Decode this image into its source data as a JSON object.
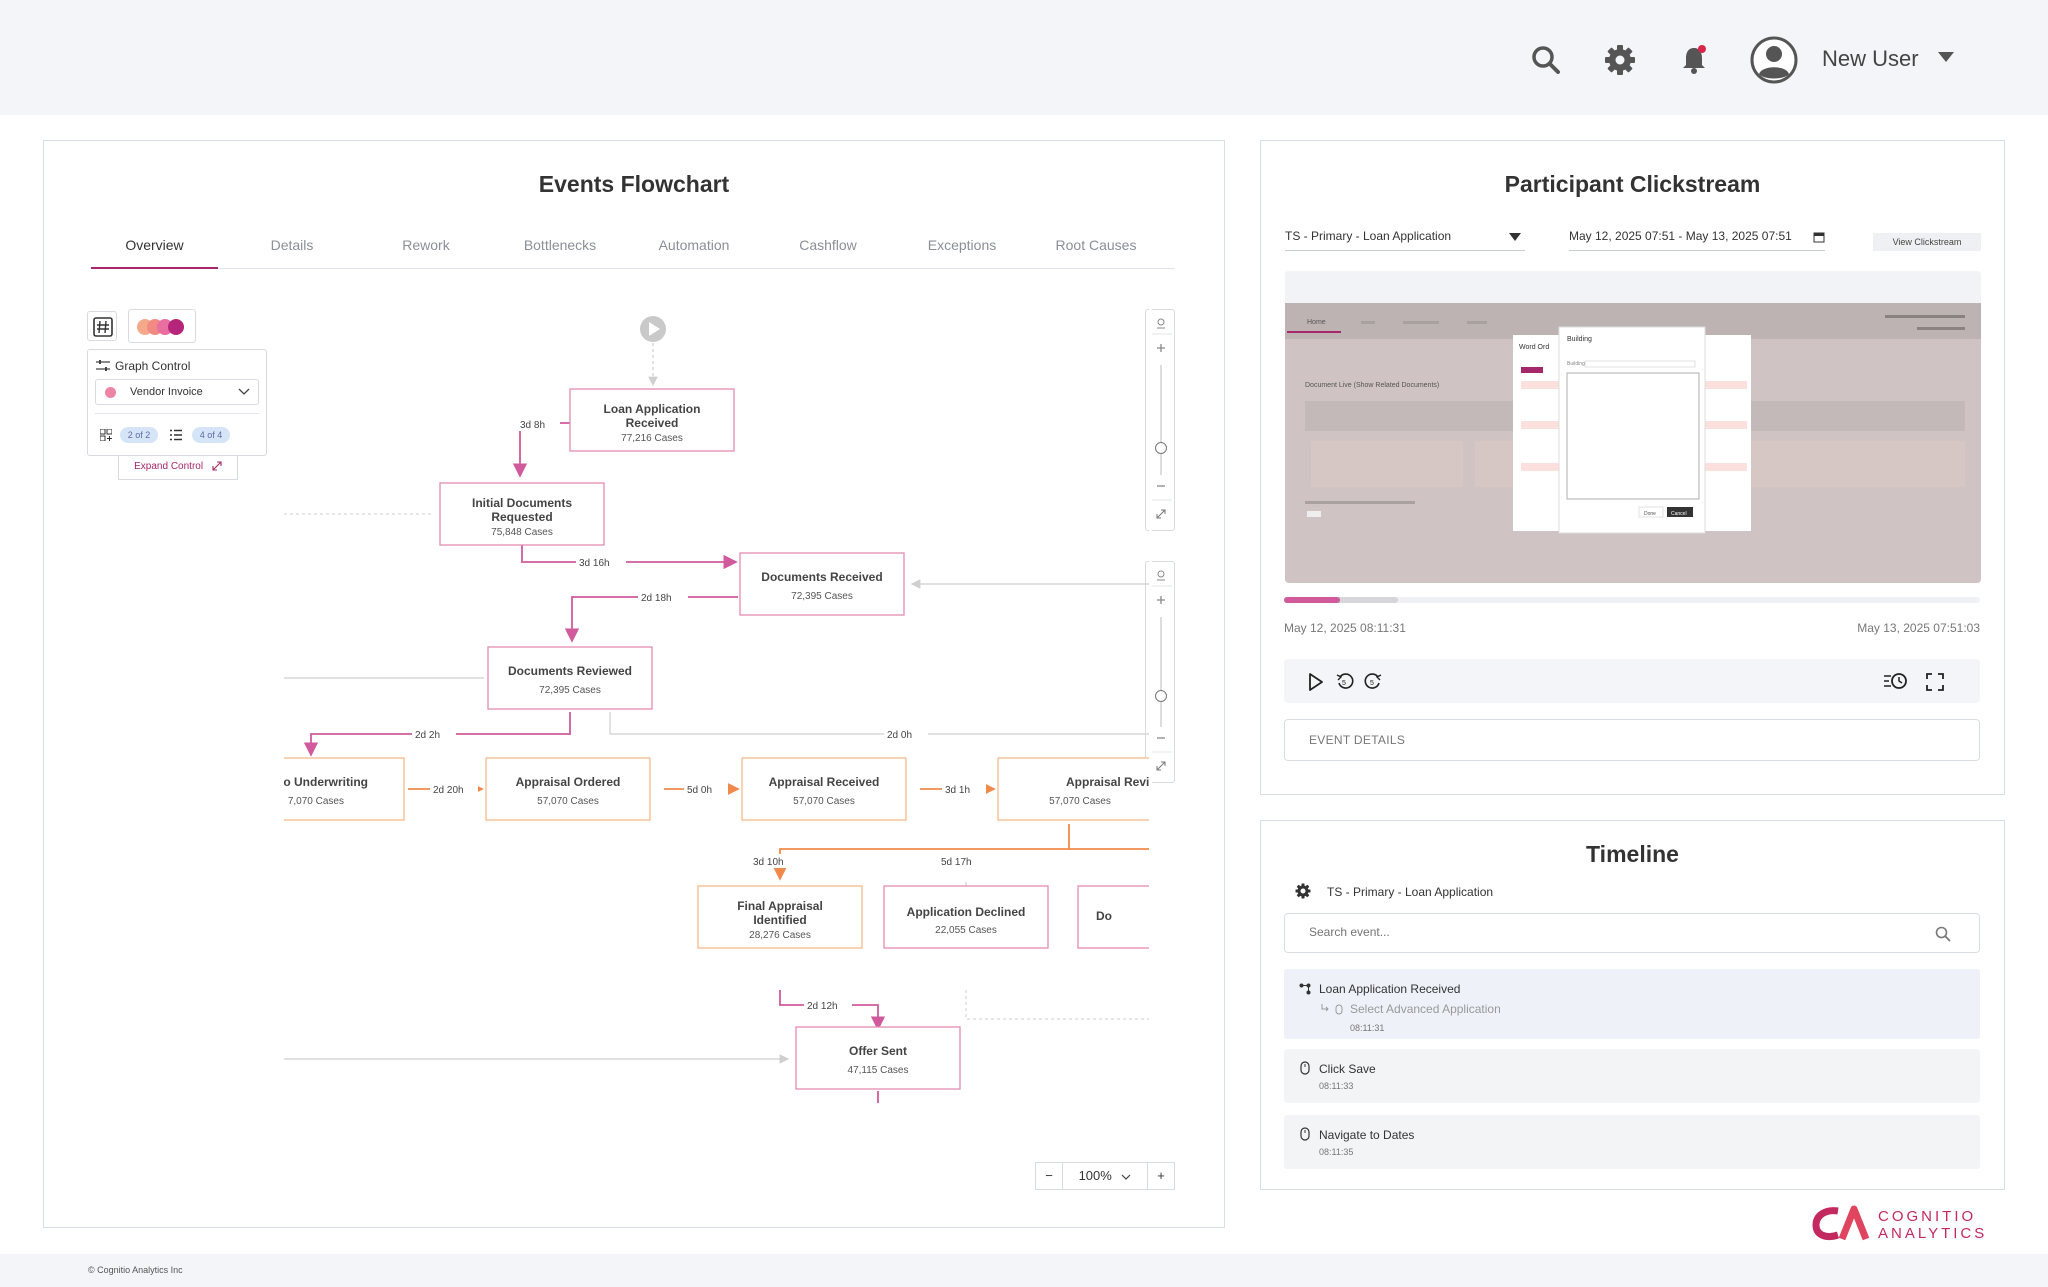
{
  "header": {
    "user_name": "New User",
    "icons": [
      "search-icon",
      "gear-icon",
      "bell-icon",
      "avatar-icon",
      "caret-down-icon"
    ],
    "notification_dot_color": "#d9254a"
  },
  "flowchart": {
    "title": "Events Flowchart",
    "tabs": [
      "Overview",
      "Details",
      "Rework",
      "Bottlenecks",
      "Automation",
      "Cashflow",
      "Exceptions",
      "Root Causes"
    ],
    "active_tab": "Overview",
    "graph_control": {
      "title": "Graph Control",
      "selected": "Vendor Invoice",
      "pill_a": "2 of 2",
      "pill_b": "4 of 4",
      "expand": "Expand Control"
    },
    "zoom": "100%",
    "nodes": [
      {
        "title1": "Loan Application",
        "title2": "Received",
        "cases": "77,216 Cases"
      },
      {
        "title1": "Initial Documents",
        "title2": "Requested",
        "cases": "75,848 Cases"
      },
      {
        "title1": "Documents Received",
        "title2": "",
        "cases": "72,395 Cases"
      },
      {
        "title1": "Documents Reviewed",
        "title2": "",
        "cases": "72,395 Cases"
      },
      {
        "title1": "o Underwriting",
        "title2": "",
        "cases": "7,070 Cases"
      },
      {
        "title1": "Appraisal Ordered",
        "title2": "",
        "cases": "57,070 Cases"
      },
      {
        "title1": "Appraisal Received",
        "title2": "",
        "cases": "57,070 Cases"
      },
      {
        "title1": "Appraisal Revie",
        "title2": "",
        "cases": "57,070 Cases"
      },
      {
        "title1": "Final Appraisal",
        "title2": "Identified",
        "cases": "28,276 Cases"
      },
      {
        "title1": "Application Declined",
        "title2": "",
        "cases": "22,055 Cases"
      },
      {
        "title1": "Do",
        "title2": "",
        "cases": ""
      },
      {
        "title1": "Offer Sent",
        "title2": "",
        "cases": "47,115 Cases"
      }
    ],
    "edges": [
      "3d 8h",
      "3d 16h",
      "2d 18h",
      "2d 2h",
      "2d 0h",
      "2d 20h",
      "5d 0h",
      "3d 1h",
      "3d 10h",
      "5d 17h",
      "2d 12h"
    ],
    "colors": {
      "primary": "#d05a9c",
      "accent": "#a4286a",
      "orange": "#f08a4b",
      "peach_border": "#f6b98b"
    }
  },
  "clickstream": {
    "title": "Participant Clickstream",
    "participant": "TS - Primary - Loan Application",
    "date_range": "May 12, 2025 07:51 - May 13, 2025 07:51",
    "view_btn": "View Clickstream",
    "progress": 0.08,
    "start_ts": "May 12, 2025 08:11:31",
    "end_ts": "May 13, 2025 07:51:03",
    "event_details": "EVENT DETAILS",
    "screen": {
      "tab_home": "Home",
      "page_title": "Document Live (Show Related Documents)",
      "dialog_a_title": "Word Ord",
      "dialog_b_title": "Building",
      "dialog_b_field": "Building",
      "btn_done": "Done",
      "btn_cancel": "Cancel"
    }
  },
  "timeline": {
    "title": "Timeline",
    "app": "TS - Primary - Loan Application",
    "search_placeholder": "Search event...",
    "items": [
      {
        "name": "Loan Application Received",
        "sub": "Select Advanced Application",
        "time": "08:11:31"
      },
      {
        "name": "Click Save",
        "time": "08:11:33"
      },
      {
        "name": "Navigate to Dates",
        "time": "08:11:35"
      }
    ]
  },
  "footer": {
    "copyright": "© Cognitio Analytics Inc"
  },
  "brand": {
    "line1": "COGNITIO",
    "line2": "ANALYTICS",
    "color": "#c3285f"
  }
}
